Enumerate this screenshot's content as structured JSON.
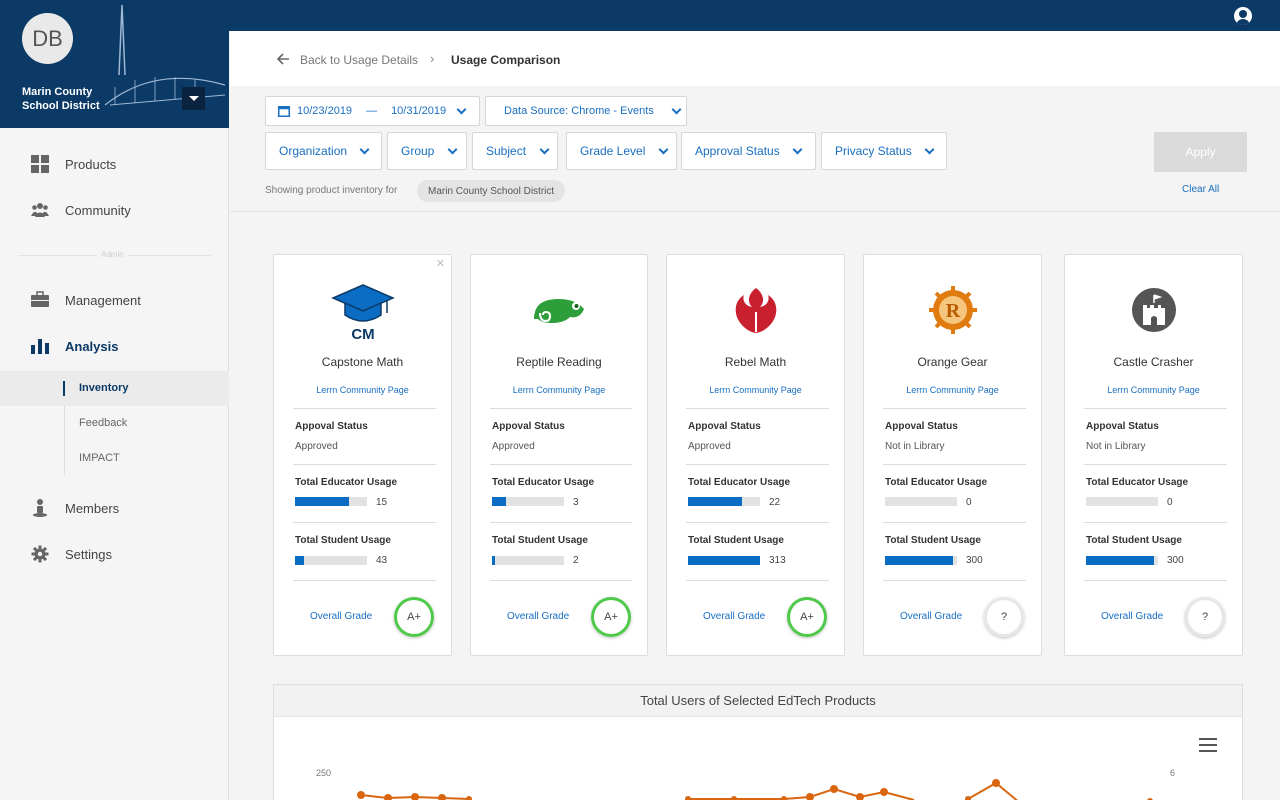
{
  "sidebar": {
    "avatar_initials": "DB",
    "brand_name": "Marin County School District",
    "admin_label": "Admin",
    "items": [
      {
        "label": "Products",
        "icon": "grid-icon"
      },
      {
        "label": "Community",
        "icon": "people-icon"
      },
      {
        "label": "Management",
        "icon": "briefcase-icon"
      },
      {
        "label": "Analysis",
        "icon": "bar-chart-icon"
      },
      {
        "label": "Members",
        "icon": "person-icon"
      },
      {
        "label": "Settings",
        "icon": "gear-icon"
      }
    ],
    "subitems": [
      "Inventory",
      "Feedback",
      "IMPACT"
    ]
  },
  "breadcrumb": {
    "back_label": "Back to Usage Details",
    "current": "Usage Comparison"
  },
  "filters": {
    "date_start": "10/23/2019",
    "date_sep": "—",
    "date_end": "10/31/2019",
    "data_source": "Data Source: Chrome - Events",
    "dropdowns": [
      "Organization",
      "Group",
      "Subject",
      "Grade Level",
      "Approval Status",
      "Privacy Status"
    ],
    "apply": "Apply",
    "clear_all": "Clear All",
    "showing_text": "Showing product inventory for",
    "chip": "Marin County School District"
  },
  "labels": {
    "approval": "Appoval Status",
    "educator": "Total Educator Usage",
    "student": "Total Student Usage",
    "grade": "Overall Grade"
  },
  "cards": [
    {
      "name": "Capstone Math",
      "link": "Lerrn Community Page",
      "approval": "Approved",
      "educator": 15,
      "educator_fill": 0.75,
      "student": 43,
      "student_fill": 0.13,
      "grade": "A+",
      "logo": "graduation-cap-icon",
      "logo_text": "CM"
    },
    {
      "name": "Reptile Reading",
      "link": "Lerrn Community Page",
      "approval": "Approved",
      "educator": 3,
      "educator_fill": 0.2,
      "student": 2,
      "student_fill": 0.04,
      "grade": "A+",
      "logo": "chameleon-icon"
    },
    {
      "name": "Rebel Math",
      "link": "Lerrn Community Page",
      "approval": "Approved",
      "educator": 22,
      "educator_fill": 0.75,
      "student": 313,
      "student_fill": 1.0,
      "grade": "A+",
      "logo": "rebel-emblem-icon"
    },
    {
      "name": "Orange Gear",
      "link": "Lerrn Community Page",
      "approval": "Not in Library",
      "educator": 0,
      "educator_fill": 0,
      "student": 300,
      "student_fill": 0.95,
      "grade": "?",
      "logo": "gear-r-icon"
    },
    {
      "name": "Castle Crasher",
      "link": "Lerrn Community Page",
      "approval": "Not in Library",
      "educator": 0,
      "educator_fill": 0,
      "student": 300,
      "student_fill": 0.95,
      "grade": "?",
      "logo": "castle-icon"
    }
  ],
  "chart": {
    "title": "Total Users of Selected EdTech Products",
    "left_axis_top": "250",
    "right_axis_top": "6"
  },
  "colors": {
    "navy": "#0b3a66",
    "accent_blue": "#1a6fc1",
    "bar_blue": "#0b6cc3",
    "line_orange": "#d9660f",
    "grade_green": "#4fc94a"
  }
}
